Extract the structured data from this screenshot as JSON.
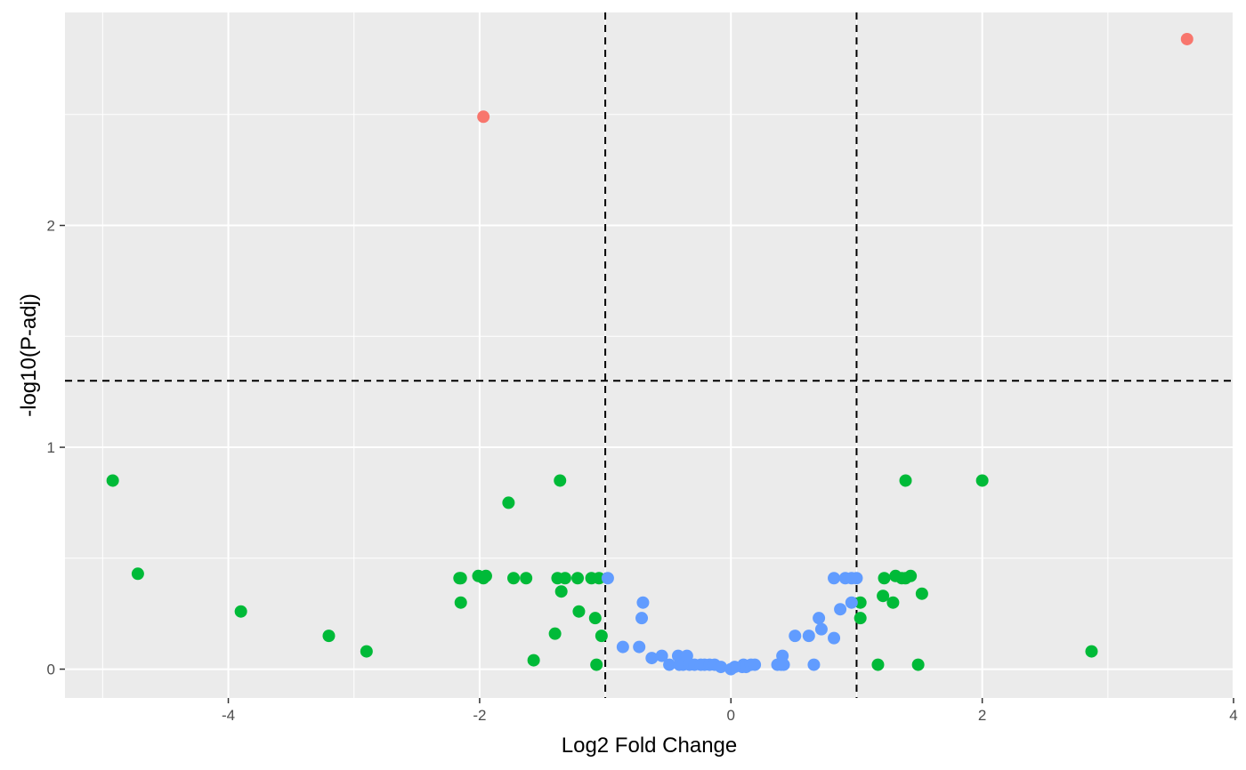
{
  "chart_data": {
    "type": "scatter",
    "title": "",
    "xlabel": "Log2 Fold Change",
    "ylabel": "-log10(P-adj)",
    "xlim": [
      -5.3,
      4.0
    ],
    "ylim": [
      -0.13,
      2.96
    ],
    "x_ticks": [
      -4,
      -2,
      0,
      2,
      4
    ],
    "x_tick_labels": [
      "-4",
      "-2",
      "0",
      "2",
      "4"
    ],
    "y_ticks": [
      0,
      1,
      2
    ],
    "y_tick_labels": [
      "0",
      "1",
      "2"
    ],
    "grid": true,
    "legend": "none",
    "panel_background": "#EBEBEB",
    "threshold_lines": {
      "vertical": [
        -1,
        1
      ],
      "horizontal": [
        1.3
      ]
    },
    "series": [
      {
        "color": "#F8766D",
        "points": [
          [
            -1.97,
            2.49
          ],
          [
            3.63,
            2.84
          ]
        ]
      },
      {
        "color": "#00BA38",
        "points": [
          [
            -4.92,
            0.85
          ],
          [
            -4.72,
            0.43
          ],
          [
            -3.9,
            0.26
          ],
          [
            -3.2,
            0.15
          ],
          [
            -2.9,
            0.08
          ],
          [
            -2.16,
            0.41
          ],
          [
            -2.15,
            0.41
          ],
          [
            -2.15,
            0.3
          ],
          [
            -2.01,
            0.42
          ],
          [
            -1.97,
            0.41
          ],
          [
            -1.95,
            0.42
          ],
          [
            -1.77,
            0.75
          ],
          [
            -1.73,
            0.41
          ],
          [
            -1.63,
            0.41
          ],
          [
            -1.57,
            0.04
          ],
          [
            -1.4,
            0.16
          ],
          [
            -1.38,
            0.41
          ],
          [
            -1.36,
            0.85
          ],
          [
            -1.35,
            0.35
          ],
          [
            -1.32,
            0.41
          ],
          [
            -1.22,
            0.41
          ],
          [
            -1.21,
            0.26
          ],
          [
            -1.11,
            0.41
          ],
          [
            -1.08,
            0.23
          ],
          [
            -1.07,
            0.02
          ],
          [
            -1.05,
            0.41
          ],
          [
            -1.03,
            0.15
          ],
          [
            1.03,
            0.23
          ],
          [
            1.03,
            0.3
          ],
          [
            1.17,
            0.02
          ],
          [
            1.21,
            0.33
          ],
          [
            1.22,
            0.41
          ],
          [
            1.29,
            0.3
          ],
          [
            1.31,
            0.42
          ],
          [
            1.36,
            0.41
          ],
          [
            1.39,
            0.41
          ],
          [
            1.39,
            0.85
          ],
          [
            1.43,
            0.42
          ],
          [
            1.49,
            0.02
          ],
          [
            1.52,
            0.34
          ],
          [
            2.0,
            0.85
          ],
          [
            2.87,
            0.08
          ]
        ]
      },
      {
        "color": "#619CFF",
        "points": [
          [
            -0.98,
            0.41
          ],
          [
            -0.86,
            0.1
          ],
          [
            -0.73,
            0.1
          ],
          [
            -0.71,
            0.23
          ],
          [
            -0.7,
            0.3
          ],
          [
            -0.63,
            0.05
          ],
          [
            -0.55,
            0.06
          ],
          [
            -0.49,
            0.02
          ],
          [
            -0.42,
            0.06
          ],
          [
            -0.41,
            0.02
          ],
          [
            -0.38,
            0.02
          ],
          [
            -0.35,
            0.06
          ],
          [
            -0.33,
            0.02
          ],
          [
            -0.29,
            0.02
          ],
          [
            -0.24,
            0.02
          ],
          [
            -0.21,
            0.02
          ],
          [
            -0.17,
            0.02
          ],
          [
            -0.13,
            0.02
          ],
          [
            -0.08,
            0.01
          ],
          [
            0.0,
            0.0
          ],
          [
            0.03,
            0.01
          ],
          [
            0.09,
            0.01
          ],
          [
            0.1,
            0.02
          ],
          [
            0.12,
            0.01
          ],
          [
            0.16,
            0.02
          ],
          [
            0.19,
            0.02
          ],
          [
            0.37,
            0.02
          ],
          [
            0.4,
            0.02
          ],
          [
            0.41,
            0.06
          ],
          [
            0.42,
            0.02
          ],
          [
            0.51,
            0.15
          ],
          [
            0.62,
            0.15
          ],
          [
            0.66,
            0.02
          ],
          [
            0.7,
            0.23
          ],
          [
            0.72,
            0.18
          ],
          [
            0.82,
            0.14
          ],
          [
            0.82,
            0.41
          ],
          [
            0.87,
            0.27
          ],
          [
            0.91,
            0.41
          ],
          [
            0.96,
            0.3
          ],
          [
            0.96,
            0.41
          ],
          [
            1.0,
            0.41
          ]
        ]
      }
    ]
  }
}
